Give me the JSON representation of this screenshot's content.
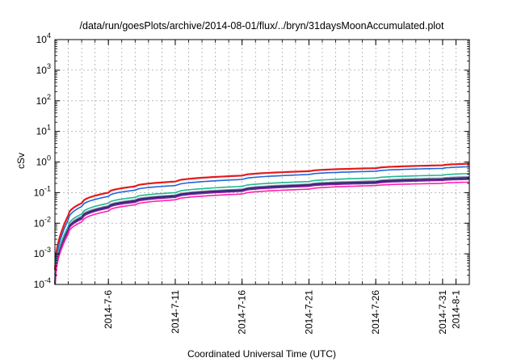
{
  "chart_data": {
    "type": "line",
    "title": "/data/run/goesPlots/archive/2014-08-01/flux/../bryn/31daysMoonAccumulated.plot",
    "xlabel": "Coordinated Universal Time (UTC)",
    "ylabel": "cSv",
    "y_scale": "log",
    "ylim": [
      0.0001,
      10000
    ],
    "y_ticks": [
      {
        "value": 0.0001,
        "base": "10",
        "exp": "-4"
      },
      {
        "value": 0.001,
        "base": "10",
        "exp": "-3"
      },
      {
        "value": 0.01,
        "base": "10",
        "exp": "-2"
      },
      {
        "value": 0.1,
        "base": "10",
        "exp": "-1"
      },
      {
        "value": 1,
        "base": "10",
        "exp": "0"
      },
      {
        "value": 10,
        "base": "10",
        "exp": "1"
      },
      {
        "value": 100,
        "base": "10",
        "exp": "2"
      },
      {
        "value": 1000,
        "base": "10",
        "exp": "3"
      },
      {
        "value": 10000,
        "base": "10",
        "exp": "4"
      }
    ],
    "xlim": [
      "2014-07-02",
      "2014-08-02"
    ],
    "x_ticks": [
      "2014-7-6",
      "2014-7-11",
      "2014-7-16",
      "2014-7-21",
      "2014-7-26",
      "2014-7-31",
      "2014-8-1"
    ],
    "grid": true,
    "x": [
      "2014-07-02",
      "2014-07-03",
      "2014-07-04",
      "2014-07-06",
      "2014-07-08",
      "2014-07-11",
      "2014-07-16",
      "2014-07-21",
      "2014-07-26",
      "2014-07-31",
      "2014-08-02"
    ],
    "series": [
      {
        "color": "#e41a1c",
        "values": [
          0.0003,
          0.018,
          0.045,
          0.1,
          0.16,
          0.23,
          0.36,
          0.5,
          0.63,
          0.78,
          0.88
        ]
      },
      {
        "color": "#2166d9",
        "values": [
          0.0002,
          0.013,
          0.035,
          0.075,
          0.12,
          0.17,
          0.27,
          0.39,
          0.5,
          0.62,
          0.7
        ]
      },
      {
        "color": "#1fb88f",
        "values": [
          0.00015,
          0.008,
          0.02,
          0.045,
          0.07,
          0.1,
          0.16,
          0.23,
          0.3,
          0.37,
          0.42
        ]
      },
      {
        "color": "#8a8aa8",
        "values": [
          0.00012,
          0.0065,
          0.017,
          0.037,
          0.058,
          0.083,
          0.13,
          0.19,
          0.24,
          0.3,
          0.33
        ]
      },
      {
        "color": "#2a2a6e",
        "values": [
          0.0001,
          0.006,
          0.015,
          0.034,
          0.053,
          0.077,
          0.12,
          0.175,
          0.22,
          0.27,
          0.3
        ]
      },
      {
        "color": "#8b1fa8",
        "values": [
          0.0001,
          0.0055,
          0.0135,
          0.031,
          0.048,
          0.07,
          0.11,
          0.16,
          0.2,
          0.25,
          0.27
        ]
      },
      {
        "color": "#ff22aa",
        "values": [
          0.0001,
          0.0045,
          0.011,
          0.025,
          0.04,
          0.058,
          0.09,
          0.13,
          0.17,
          0.2,
          0.22
        ]
      }
    ]
  }
}
